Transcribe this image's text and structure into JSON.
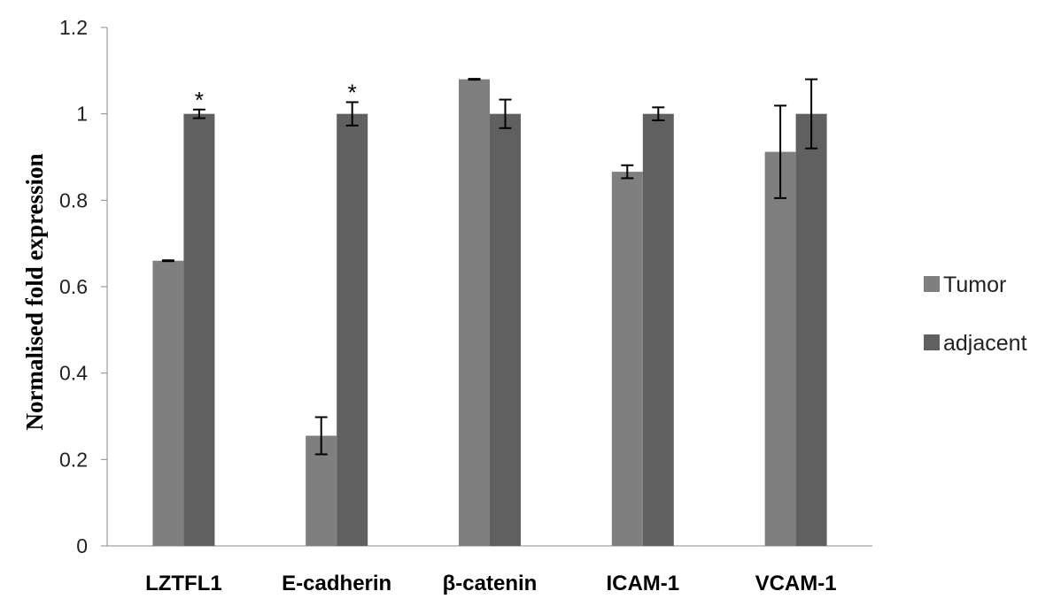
{
  "chart_data": {
    "type": "bar",
    "title": "",
    "xlabel": "",
    "ylabel": "Normalised fold expression",
    "ylim": [
      0,
      1.2
    ],
    "yticks": [
      "0",
      "0.2",
      "0.4",
      "0.6",
      "0.8",
      "1",
      "1.2"
    ],
    "categories": [
      "LZTFL1",
      "E-cadherin",
      "β-catenin",
      "ICAM-1",
      "VCAM-1"
    ],
    "series": [
      {
        "name": "Tumor",
        "color": "#7f7f7f",
        "values": [
          0.66,
          0.255,
          1.08,
          0.866,
          0.912
        ],
        "errors": [
          0.001,
          0.043,
          0.001,
          0.015,
          0.107
        ]
      },
      {
        "name": "adjacent",
        "color": "#606060",
        "values": [
          1.0,
          1.0,
          1.0,
          1.0,
          1.0
        ],
        "errors": [
          0.01,
          0.027,
          0.033,
          0.015,
          0.08
        ]
      }
    ],
    "annotations": [
      {
        "category_index": 0,
        "series_index": 1,
        "text": "*"
      },
      {
        "category_index": 1,
        "series_index": 1,
        "text": "*"
      }
    ],
    "legend": {
      "position": "right",
      "entries": [
        "Tumor",
        "adjacent"
      ]
    },
    "grid": false
  }
}
